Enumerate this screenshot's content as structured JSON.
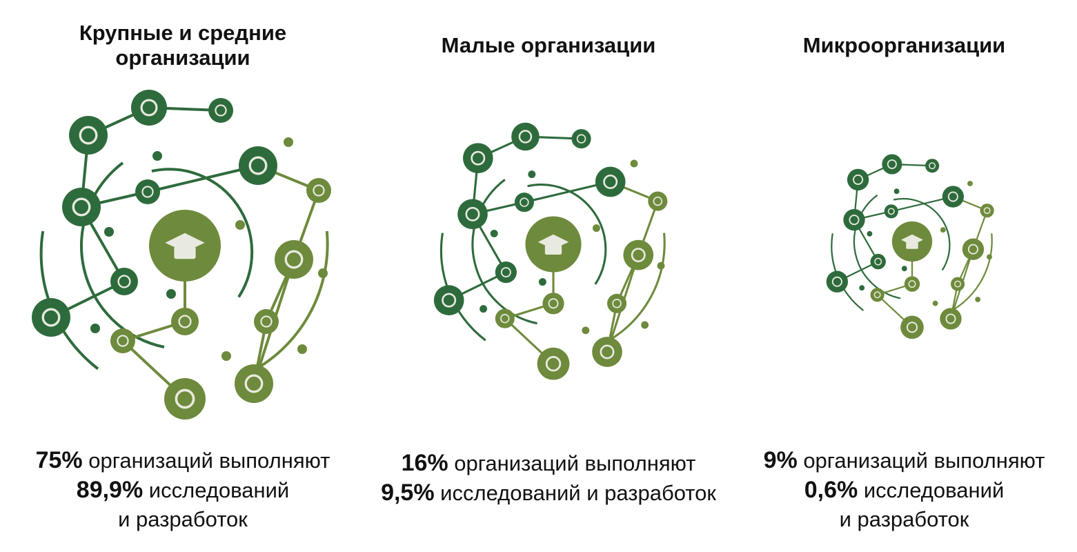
{
  "colors": {
    "dark_green": "#2e6b3c",
    "olive_green": "#6e8a3c",
    "icon_fill": "#e8eadf"
  },
  "columns": [
    {
      "title": "Крупные и средние\nорганизации",
      "caption": {
        "pct_orgs": "75%",
        "text_orgs": " организаций выполняют",
        "pct_rd": "89,9%",
        "text_rd": " исследований",
        "text_rd2": "и разработок"
      }
    },
    {
      "title": "Малые организации",
      "caption": {
        "pct_orgs": "16%",
        "text_orgs": " организаций выполняют",
        "pct_rd": "9,5%",
        "text_rd": " исследований и разработок",
        "text_rd2": ""
      }
    },
    {
      "title": "Микроорганизации",
      "caption": {
        "pct_orgs": "9%",
        "text_orgs": " организаций выполняют",
        "pct_rd": "0,6%",
        "text_rd": " исследований",
        "text_rd2": "и разработок"
      }
    }
  ],
  "icons": [
    "graduation-cap-icon",
    "calculator-icon",
    "molecule-icon",
    "microscope-icon",
    "brain-icon",
    "atom-icon",
    "compass-icon",
    "molecule-icon",
    "glasses-icon",
    "flask-icon",
    "test-tube-icon",
    "molecule-icon",
    "flower-icon",
    "protractor-icon",
    "pencil-icon",
    "beaker-icon"
  ]
}
